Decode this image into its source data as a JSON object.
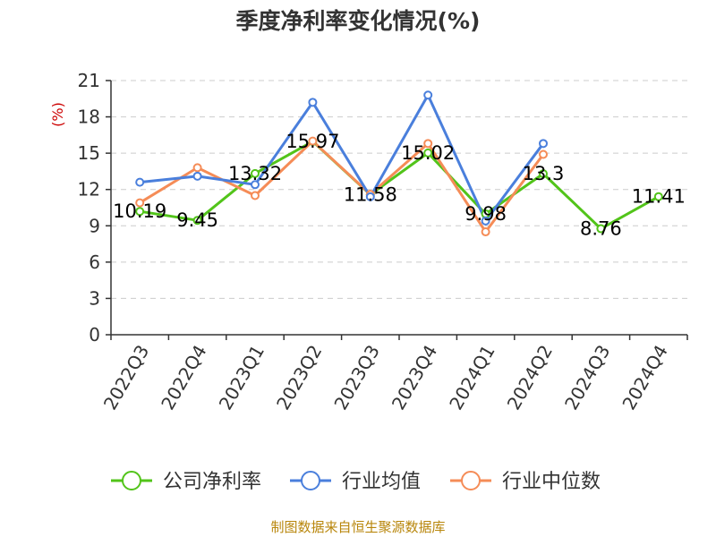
{
  "chart_data": {
    "type": "line",
    "title": "季度净利率变化情况(%)",
    "ylabel": "(%)",
    "xlabel": "",
    "categories": [
      "2022Q3",
      "2022Q4",
      "2023Q1",
      "2023Q2",
      "2023Q3",
      "2023Q4",
      "2024Q1",
      "2024Q2",
      "2024Q3",
      "2024Q4"
    ],
    "ylim": [
      0,
      21
    ],
    "yticks": [
      0,
      3,
      6,
      9,
      12,
      15,
      18,
      21
    ],
    "grid": true,
    "legend_position": "bottom",
    "series": [
      {
        "name": "公司净利率",
        "color": "#52c41a",
        "labeled": true,
        "values": [
          10.19,
          9.45,
          13.32,
          15.97,
          11.58,
          15.02,
          9.98,
          13.3,
          8.76,
          11.41
        ]
      },
      {
        "name": "行业均值",
        "color": "#4a7fdc",
        "labeled": false,
        "values": [
          12.6,
          13.1,
          12.4,
          19.2,
          11.4,
          19.8,
          9.4,
          15.8,
          null,
          null
        ]
      },
      {
        "name": "行业中位数",
        "color": "#f58c57",
        "labeled": false,
        "values": [
          10.9,
          13.8,
          11.5,
          16.0,
          11.6,
          15.8,
          8.5,
          14.9,
          null,
          null
        ]
      }
    ]
  },
  "footer": {
    "source": "制图数据来自恒生聚源数据库"
  }
}
